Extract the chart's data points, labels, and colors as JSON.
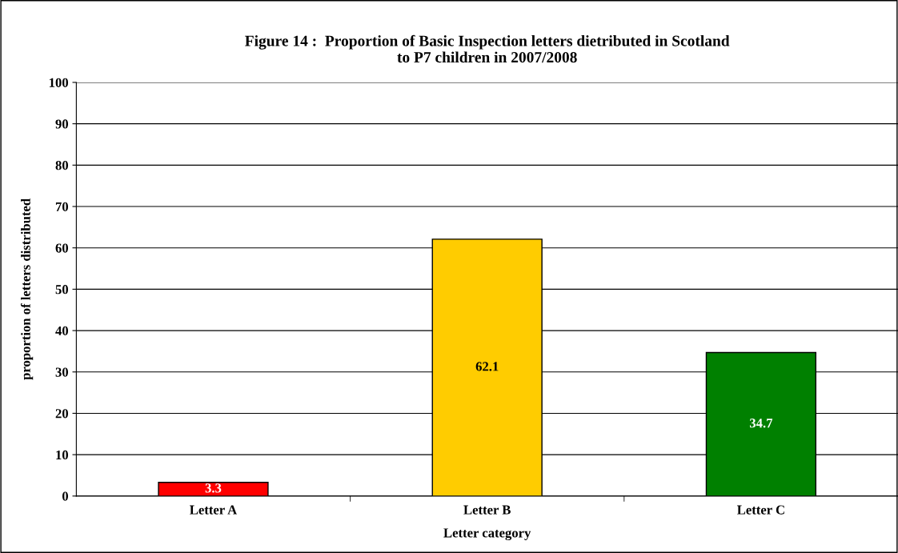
{
  "chart_data": {
    "type": "bar",
    "title": "Figure 14 :  Proportion of Basic Inspection letters dietributed in Scotland\nto P7 children in 2007/2008",
    "xlabel": "Letter category",
    "ylabel": "proportion of letters distributed",
    "categories": [
      "Letter A",
      "Letter B",
      "Letter C"
    ],
    "values": [
      3.3,
      62.1,
      34.7
    ],
    "colors": [
      "#ff0000",
      "#ffcc00",
      "#008000"
    ],
    "ylim": [
      0,
      100
    ],
    "yticks": [
      0,
      10,
      20,
      30,
      40,
      50,
      60,
      70,
      80,
      90,
      100
    ],
    "grid": "y",
    "data_labels": true,
    "legend": false
  }
}
